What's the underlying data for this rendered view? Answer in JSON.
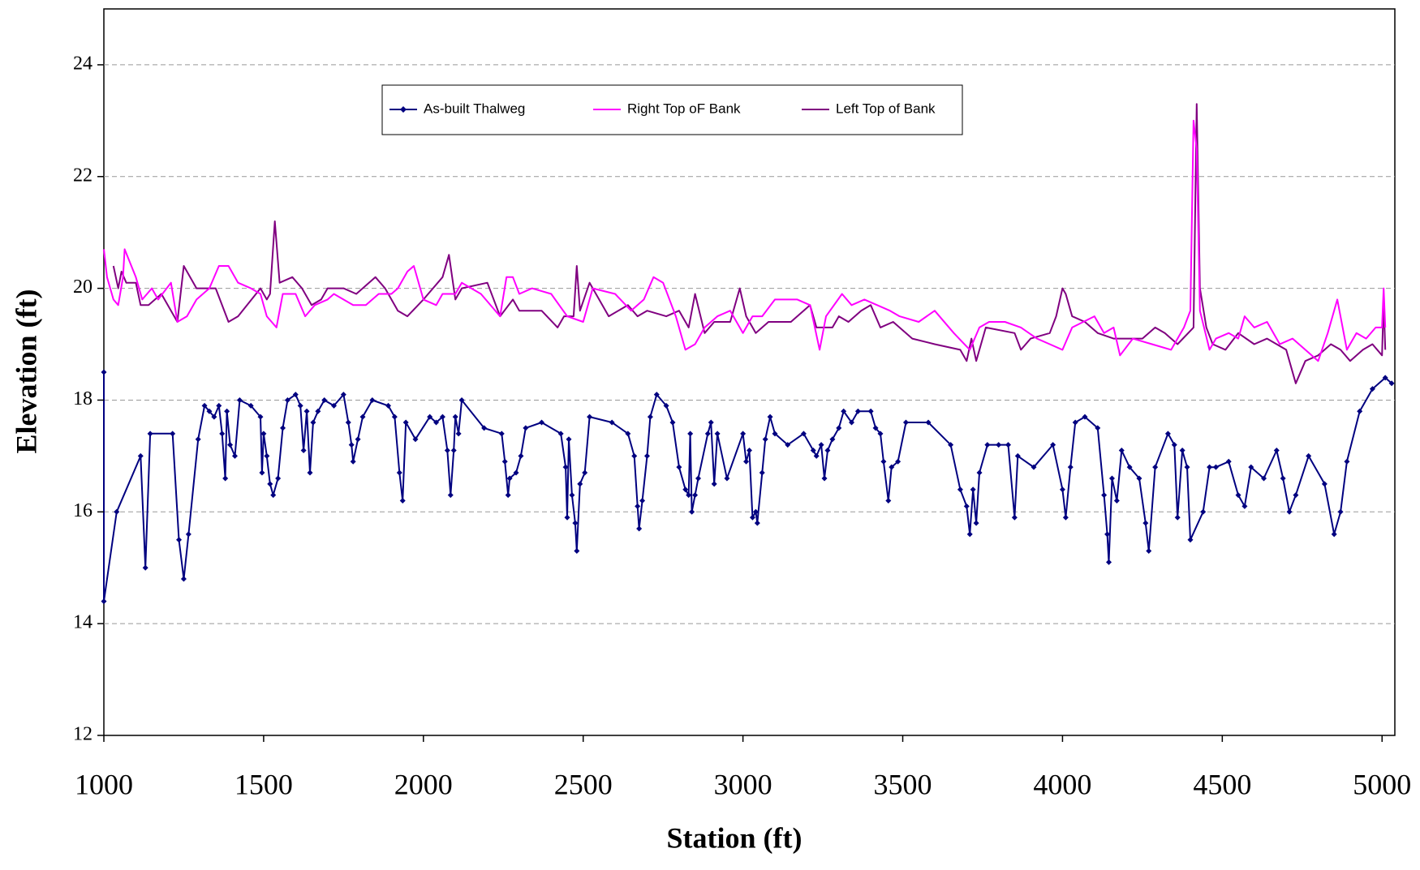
{
  "chart_data": {
    "type": "line",
    "xlabel": "Station (ft)",
    "ylabel": "Elevation (ft)",
    "xlim": [
      1000,
      5040
    ],
    "ylim": [
      12,
      25
    ],
    "xticks": [
      1000,
      1500,
      2000,
      2500,
      3000,
      3500,
      4000,
      4500,
      5000
    ],
    "yticks": [
      12,
      14,
      16,
      18,
      20,
      22,
      24
    ],
    "grid": true,
    "legend": "top",
    "series": [
      {
        "name": "As-built Thalweg",
        "color": "#000080",
        "marker": true,
        "x": [
          1000,
          1000,
          1040,
          1115,
          1130,
          1145,
          1215,
          1235,
          1250,
          1265,
          1295,
          1315,
          1330,
          1345,
          1360,
          1370,
          1380,
          1385,
          1395,
          1410,
          1425,
          1460,
          1490,
          1495,
          1500,
          1510,
          1520,
          1530,
          1545,
          1560,
          1575,
          1600,
          1615,
          1625,
          1635,
          1645,
          1655,
          1670,
          1690,
          1720,
          1750,
          1765,
          1775,
          1780,
          1795,
          1810,
          1840,
          1890,
          1910,
          1925,
          1935,
          1945,
          1975,
          2020,
          2040,
          2060,
          2075,
          2085,
          2095,
          2100,
          2110,
          2120,
          2190,
          2245,
          2255,
          2265,
          2270,
          2290,
          2305,
          2320,
          2370,
          2430,
          2445,
          2450,
          2455,
          2465,
          2475,
          2480,
          2490,
          2505,
          2520,
          2590,
          2640,
          2660,
          2670,
          2675,
          2685,
          2700,
          2710,
          2730,
          2760,
          2780,
          2800,
          2820,
          2830,
          2835,
          2840,
          2850,
          2860,
          2890,
          2900,
          2910,
          2920,
          2950,
          3000,
          3010,
          3020,
          3030,
          3040,
          3045,
          3060,
          3070,
          3085,
          3100,
          3140,
          3190,
          3220,
          3230,
          3245,
          3255,
          3265,
          3280,
          3300,
          3315,
          3340,
          3360,
          3400,
          3415,
          3430,
          3440,
          3455,
          3465,
          3485,
          3510,
          3580,
          3650,
          3680,
          3700,
          3710,
          3720,
          3730,
          3740,
          3765,
          3800,
          3830,
          3850,
          3860,
          3910,
          3970,
          4000,
          4010,
          4025,
          4040,
          4070,
          4110,
          4130,
          4140,
          4145,
          4155,
          4170,
          4185,
          4210,
          4240,
          4260,
          4270,
          4290,
          4330,
          4350,
          4360,
          4375,
          4390,
          4400,
          4440,
          4460,
          4480,
          4520,
          4550,
          4570,
          4590,
          4630,
          4670,
          4690,
          4710,
          4730,
          4770,
          4820,
          4850,
          4870,
          4890,
          4930,
          4970,
          5010,
          5030
        ],
        "values": [
          18.5,
          14.4,
          16.0,
          17.0,
          15.0,
          17.4,
          17.4,
          15.5,
          14.8,
          15.6,
          17.3,
          17.9,
          17.8,
          17.7,
          17.9,
          17.4,
          16.6,
          17.8,
          17.2,
          17.0,
          18.0,
          17.9,
          17.7,
          16.7,
          17.4,
          17.0,
          16.5,
          16.3,
          16.6,
          17.5,
          18.0,
          18.1,
          17.9,
          17.1,
          17.8,
          16.7,
          17.6,
          17.8,
          18.0,
          17.9,
          18.1,
          17.6,
          17.2,
          16.9,
          17.3,
          17.7,
          18.0,
          17.9,
          17.7,
          16.7,
          16.2,
          17.6,
          17.3,
          17.7,
          17.6,
          17.7,
          17.1,
          16.3,
          17.1,
          17.7,
          17.4,
          18.0,
          17.5,
          17.4,
          16.9,
          16.3,
          16.6,
          16.7,
          17.0,
          17.5,
          17.6,
          17.4,
          16.8,
          15.9,
          17.3,
          16.3,
          15.8,
          15.3,
          16.5,
          16.7,
          17.7,
          17.6,
          17.4,
          17.0,
          16.1,
          15.7,
          16.2,
          17.0,
          17.7,
          18.1,
          17.9,
          17.6,
          16.8,
          16.4,
          16.3,
          17.4,
          16.0,
          16.3,
          16.6,
          17.4,
          17.6,
          16.5,
          17.4,
          16.6,
          17.4,
          16.9,
          17.1,
          15.9,
          16.0,
          15.8,
          16.7,
          17.3,
          17.7,
          17.4,
          17.2,
          17.4,
          17.1,
          17.0,
          17.2,
          16.6,
          17.1,
          17.3,
          17.5,
          17.8,
          17.6,
          17.8,
          17.8,
          17.5,
          17.4,
          16.9,
          16.2,
          16.8,
          16.9,
          17.6,
          17.6,
          17.2,
          16.4,
          16.1,
          15.6,
          16.4,
          15.8,
          16.7,
          17.2,
          17.2,
          17.2,
          15.9,
          17.0,
          16.8,
          17.2,
          16.4,
          15.9,
          16.8,
          17.6,
          17.7,
          17.5,
          16.3,
          15.6,
          15.1,
          16.6,
          16.2,
          17.1,
          16.8,
          16.6,
          15.8,
          15.3,
          16.8,
          17.4,
          17.2,
          15.9,
          17.1,
          16.8,
          15.5,
          16.0,
          16.8,
          16.8,
          16.9,
          16.3,
          16.1,
          16.8,
          16.6,
          17.1,
          16.6,
          16.0,
          16.3,
          17.0,
          16.5,
          15.6,
          16.0,
          16.9,
          17.8,
          18.2,
          18.4,
          18.3
        ]
      },
      {
        "name": "Right Top oF Bank",
        "color": "#ff00ff",
        "marker": false,
        "x": [
          1000,
          1010,
          1030,
          1045,
          1060,
          1065,
          1100,
          1120,
          1150,
          1170,
          1210,
          1230,
          1260,
          1290,
          1330,
          1360,
          1390,
          1420,
          1460,
          1490,
          1510,
          1540,
          1560,
          1600,
          1630,
          1660,
          1700,
          1720,
          1780,
          1820,
          1860,
          1900,
          1920,
          1950,
          1970,
          2000,
          2040,
          2060,
          2100,
          2120,
          2180,
          2240,
          2260,
          2280,
          2300,
          2340,
          2400,
          2450,
          2500,
          2530,
          2600,
          2650,
          2690,
          2720,
          2750,
          2790,
          2820,
          2850,
          2880,
          2920,
          2960,
          3000,
          3030,
          3060,
          3100,
          3170,
          3210,
          3240,
          3260,
          3310,
          3340,
          3380,
          3420,
          3460,
          3490,
          3550,
          3600,
          3660,
          3710,
          3740,
          3770,
          3820,
          3870,
          3920,
          3960,
          4000,
          4030,
          4100,
          4130,
          4160,
          4180,
          4220,
          4280,
          4340,
          4380,
          4400,
          4410,
          4420,
          4430,
          4460,
          4480,
          4520,
          4550,
          4570,
          4600,
          4640,
          4680,
          4720,
          4760,
          4800,
          4830,
          4860,
          4890,
          4920,
          4950,
          4980,
          5000,
          5005,
          5010
        ],
        "values": [
          20.7,
          20.2,
          19.8,
          19.7,
          20.2,
          20.7,
          20.2,
          19.8,
          20.0,
          19.8,
          20.1,
          19.4,
          19.5,
          19.8,
          20.0,
          20.4,
          20.4,
          20.1,
          20.0,
          19.9,
          19.5,
          19.3,
          19.9,
          19.9,
          19.5,
          19.7,
          19.8,
          19.9,
          19.7,
          19.7,
          19.9,
          19.9,
          20.0,
          20.3,
          20.4,
          19.8,
          19.7,
          19.9,
          19.9,
          20.1,
          19.9,
          19.5,
          20.2,
          20.2,
          19.9,
          20.0,
          19.9,
          19.5,
          19.4,
          20.0,
          19.9,
          19.6,
          19.8,
          20.2,
          20.1,
          19.5,
          18.9,
          19.0,
          19.3,
          19.5,
          19.6,
          19.2,
          19.5,
          19.5,
          19.8,
          19.8,
          19.7,
          18.9,
          19.5,
          19.9,
          19.7,
          19.8,
          19.7,
          19.6,
          19.5,
          19.4,
          19.6,
          19.2,
          18.9,
          19.3,
          19.4,
          19.4,
          19.3,
          19.1,
          19.0,
          18.9,
          19.3,
          19.5,
          19.2,
          19.3,
          18.8,
          19.1,
          19.0,
          18.9,
          19.3,
          19.6,
          23.0,
          22.5,
          19.6,
          18.9,
          19.1,
          19.2,
          19.1,
          19.5,
          19.3,
          19.4,
          19.0,
          19.1,
          18.9,
          18.7,
          19.2,
          19.8,
          18.9,
          19.2,
          19.1,
          19.3,
          19.3,
          20.0,
          19.3
        ]
      },
      {
        "name": "Left Top of Bank",
        "color": "#800080",
        "marker": false,
        "x": [
          1030,
          1045,
          1055,
          1070,
          1100,
          1115,
          1140,
          1180,
          1230,
          1250,
          1290,
          1350,
          1390,
          1420,
          1490,
          1510,
          1520,
          1535,
          1550,
          1590,
          1620,
          1650,
          1680,
          1700,
          1750,
          1790,
          1850,
          1880,
          1920,
          1950,
          2000,
          2060,
          2080,
          2100,
          2120,
          2200,
          2240,
          2280,
          2300,
          2370,
          2420,
          2440,
          2470,
          2480,
          2490,
          2520,
          2580,
          2640,
          2670,
          2700,
          2760,
          2800,
          2830,
          2850,
          2880,
          2910,
          2960,
          2990,
          3010,
          3040,
          3080,
          3150,
          3210,
          3230,
          3280,
          3300,
          3330,
          3370,
          3400,
          3430,
          3470,
          3530,
          3600,
          3680,
          3700,
          3715,
          3730,
          3760,
          3850,
          3870,
          3900,
          3960,
          3980,
          4000,
          4010,
          4030,
          4070,
          4110,
          4160,
          4210,
          4250,
          4290,
          4320,
          4360,
          4410,
          4420,
          4430,
          4450,
          4470,
          4510,
          4550,
          4600,
          4640,
          4700,
          4730,
          4760,
          4800,
          4840,
          4870,
          4900,
          4940,
          4970,
          5000,
          5005,
          5010
        ],
        "values": [
          20.4,
          20.0,
          20.3,
          20.1,
          20.1,
          19.7,
          19.7,
          19.9,
          19.4,
          20.4,
          20.0,
          20.0,
          19.4,
          19.5,
          20.0,
          19.8,
          19.9,
          21.2,
          20.1,
          20.2,
          20.0,
          19.7,
          19.8,
          20.0,
          20.0,
          19.9,
          20.2,
          20.0,
          19.6,
          19.5,
          19.8,
          20.2,
          20.6,
          19.8,
          20.0,
          20.1,
          19.5,
          19.8,
          19.6,
          19.6,
          19.3,
          19.5,
          19.5,
          20.4,
          19.6,
          20.1,
          19.5,
          19.7,
          19.5,
          19.6,
          19.5,
          19.6,
          19.3,
          19.9,
          19.2,
          19.4,
          19.4,
          20.0,
          19.5,
          19.2,
          19.4,
          19.4,
          19.7,
          19.3,
          19.3,
          19.5,
          19.4,
          19.6,
          19.7,
          19.3,
          19.4,
          19.1,
          19.0,
          18.9,
          18.7,
          19.1,
          18.7,
          19.3,
          19.2,
          18.9,
          19.1,
          19.2,
          19.5,
          20.0,
          19.9,
          19.5,
          19.4,
          19.2,
          19.1,
          19.1,
          19.1,
          19.3,
          19.2,
          19.0,
          19.3,
          23.3,
          20.0,
          19.3,
          19.0,
          18.9,
          19.2,
          19.0,
          19.1,
          18.9,
          18.3,
          18.7,
          18.8,
          19.0,
          18.9,
          18.7,
          18.9,
          19.0,
          18.8,
          19.8,
          18.9
        ]
      }
    ]
  }
}
